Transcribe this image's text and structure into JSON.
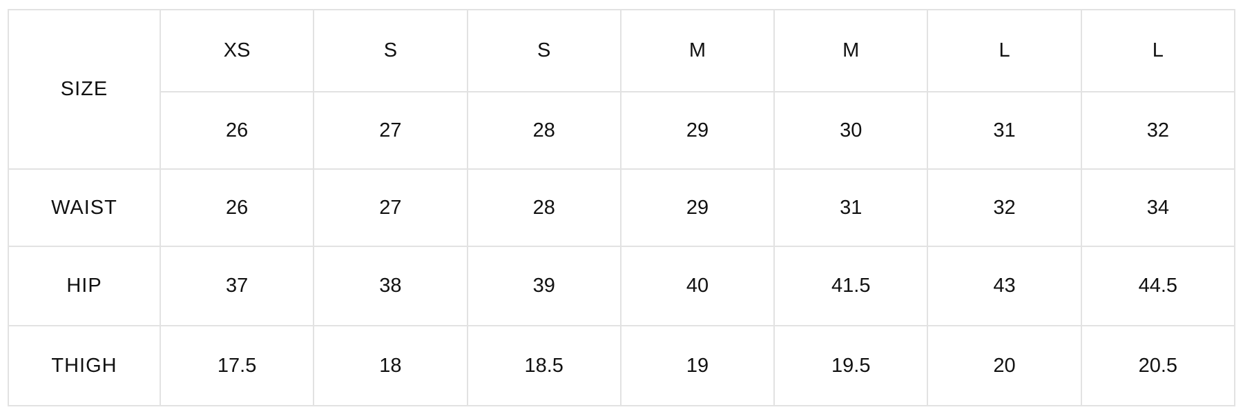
{
  "table": {
    "size_label": "SIZE",
    "letter_sizes": [
      "XS",
      "S",
      "S",
      "M",
      "M",
      "L",
      "L"
    ],
    "numeric_sizes": [
      "26",
      "27",
      "28",
      "29",
      "30",
      "31",
      "32"
    ],
    "rows": [
      {
        "label": "WAIST",
        "values": [
          "26",
          "27",
          "28",
          "29",
          "31",
          "32",
          "34"
        ]
      },
      {
        "label": "HIP",
        "values": [
          "37",
          "38",
          "39",
          "40",
          "41.5",
          "43",
          "44.5"
        ]
      },
      {
        "label": "THIGH",
        "values": [
          "17.5",
          "18",
          "18.5",
          "19",
          "19.5",
          "20",
          "20.5"
        ]
      }
    ]
  }
}
